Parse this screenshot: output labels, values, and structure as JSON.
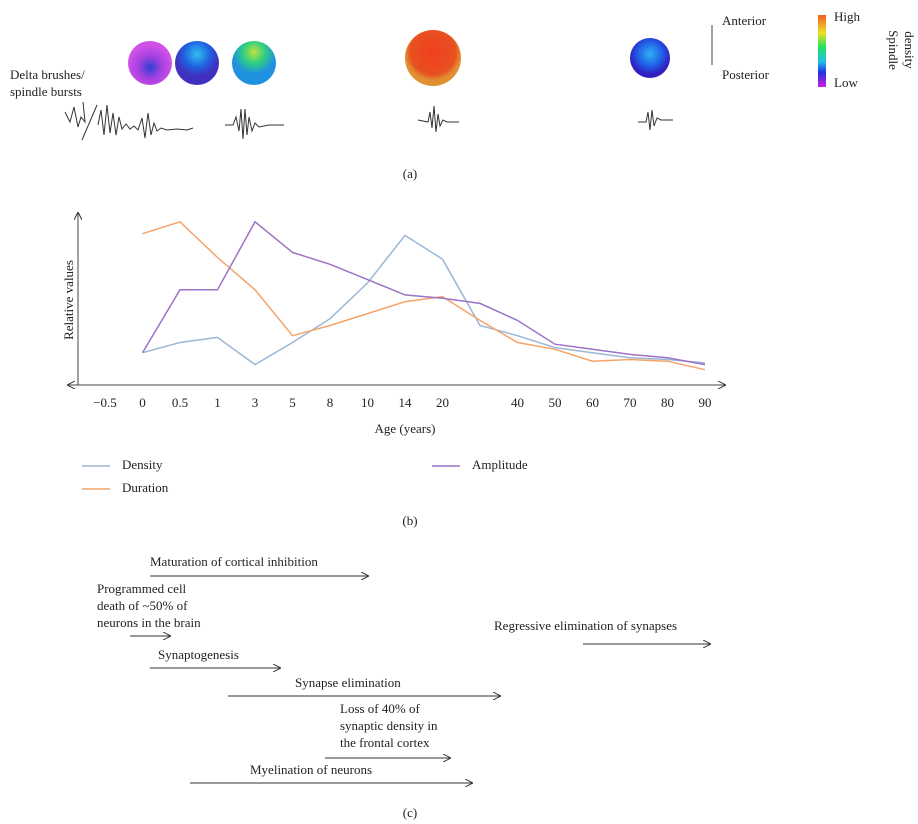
{
  "panel_a": {
    "left_label": [
      "Delta brushes/",
      "spindle bursts"
    ],
    "anterior": "Anterior",
    "posterior": "Posterior",
    "high": "High",
    "low": "Low",
    "colorbar_title": [
      "Spindle",
      "density"
    ],
    "label": "(a)"
  },
  "chart_data": {
    "type": "line",
    "x_label": "Age (years)",
    "y_label": "Relative values",
    "categories": [
      "−0.5",
      "0",
      "0.5",
      "1",
      "3",
      "5",
      "8",
      "10",
      "14",
      "20",
      null,
      "40",
      "50",
      "60",
      "70",
      "80",
      "90"
    ],
    "ylim": [
      0,
      100
    ],
    "series": [
      {
        "name": "Density",
        "color": "#9ab7d6",
        "values": [
          null,
          19,
          25,
          28,
          12,
          25,
          39,
          60,
          88,
          74,
          35,
          29,
          22,
          19,
          16,
          15,
          13
        ]
      },
      {
        "name": "Duration",
        "color": "#f4a46a",
        "values": [
          null,
          89,
          96,
          75,
          56,
          29,
          35,
          42,
          49,
          52,
          38,
          25,
          21,
          14,
          15,
          14,
          9
        ]
      },
      {
        "name": "Amplitude",
        "color": "#9d72c7",
        "values": [
          null,
          19,
          56,
          56,
          96,
          78,
          71,
          62,
          53,
          51,
          48,
          38,
          24,
          21,
          18,
          16,
          12
        ]
      }
    ],
    "label": "(b)"
  },
  "panel_c": {
    "items": [
      {
        "text": [
          "Maturation of cortical inhibition"
        ]
      },
      {
        "text": [
          "Programmed cell",
          "death of ~50% of",
          "neurons in the brain"
        ]
      },
      {
        "text": [
          "Synaptogenesis"
        ]
      },
      {
        "text": [
          "Synapse elimination"
        ]
      },
      {
        "text": [
          "Loss of 40% of",
          "synaptic density in",
          "the frontal cortex"
        ]
      },
      {
        "text": [
          "Myelination of neurons"
        ]
      },
      {
        "text": [
          "Regressive elimination of synapses"
        ]
      }
    ],
    "label": "(c)"
  }
}
